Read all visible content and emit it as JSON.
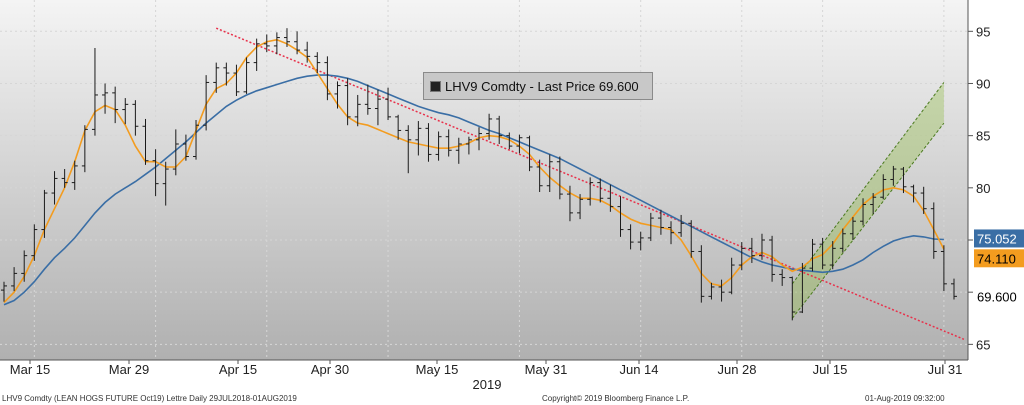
{
  "chart_data": {
    "type": "candlestick",
    "legend_text": "LHV9 Comdty - Last Price 69.600",
    "year_label": "2019",
    "x_tick_labels": [
      "Mar 15",
      "Mar 29",
      "Apr 15",
      "Apr 30",
      "May 15",
      "May 31",
      "Jun 14",
      "Jun 28",
      "Jul 15",
      "Jul 31"
    ],
    "y_ticks": [
      65,
      70,
      75,
      80,
      85,
      90,
      95
    ],
    "ylim": [
      63.5,
      98
    ],
    "last_price": 69.6,
    "last_price_label": "69.600",
    "ma_orange_label": "74.110",
    "ma_blue_label": "75.052",
    "colors": {
      "background_top": "#f4f4f4",
      "background_bottom": "#b0b0b0",
      "bars": "#1a1a1a",
      "ma_short": "#f39c1f",
      "ma_long": "#3a6ea5",
      "trendline": "#e8304a",
      "channel": "#8dbb3c",
      "last_price_tag": "#ffffff",
      "orange_tag": "#f39c1f",
      "blue_tag": "#3a6ea5"
    },
    "x_positions_days": [
      0,
      10,
      20,
      30,
      40,
      50,
      60,
      70,
      80,
      90
    ],
    "ohlc": [
      [
        70.2,
        71.0,
        69.1,
        70.6
      ],
      [
        70.6,
        72.4,
        70.1,
        71.8
      ],
      [
        71.8,
        74.0,
        71.0,
        73.5
      ],
      [
        73.5,
        76.5,
        73.0,
        76.0
      ],
      [
        76.0,
        79.8,
        75.2,
        79.5
      ],
      [
        79.5,
        81.6,
        78.4,
        80.9
      ],
      [
        80.9,
        81.8,
        80.0,
        80.5
      ],
      [
        80.5,
        82.6,
        79.8,
        82.1
      ],
      [
        82.1,
        86.0,
        81.5,
        85.6
      ],
      [
        85.6,
        93.4,
        85.0,
        88.9
      ],
      [
        88.9,
        90.0,
        87.1,
        89.1
      ],
      [
        89.1,
        89.7,
        86.2,
        87.5
      ],
      [
        87.5,
        88.6,
        86.1,
        88.0
      ],
      [
        88.0,
        88.4,
        85.0,
        85.9
      ],
      [
        85.9,
        86.6,
        82.2,
        82.6
      ],
      [
        82.6,
        83.7,
        79.2,
        80.4
      ],
      [
        80.4,
        82.5,
        78.3,
        81.8
      ],
      [
        81.8,
        85.6,
        81.2,
        84.2
      ],
      [
        84.2,
        85.1,
        82.6,
        83.0
      ],
      [
        83.0,
        86.5,
        82.7,
        86.0
      ],
      [
        86.0,
        90.8,
        85.5,
        90.1
      ],
      [
        90.1,
        92.0,
        89.1,
        91.5
      ],
      [
        91.5,
        92.0,
        89.8,
        91.0
      ],
      [
        91.0,
        91.8,
        88.8,
        89.2
      ],
      [
        89.2,
        92.5,
        89.0,
        92.0
      ],
      [
        92.0,
        94.3,
        91.2,
        93.8
      ],
      [
        93.8,
        94.7,
        93.0,
        93.6
      ],
      [
        93.6,
        94.9,
        92.8,
        94.4
      ],
      [
        94.4,
        95.3,
        93.5,
        94.0
      ],
      [
        94.0,
        95.0,
        92.8,
        93.2
      ],
      [
        93.2,
        94.0,
        92.0,
        92.6
      ],
      [
        92.6,
        93.0,
        91.0,
        92.0
      ],
      [
        92.0,
        92.6,
        88.4,
        89.0
      ],
      [
        89.0,
        90.2,
        87.6,
        89.8
      ],
      [
        89.8,
        90.5,
        86.0,
        86.8
      ],
      [
        86.8,
        88.9,
        85.9,
        88.0
      ],
      [
        88.0,
        89.9,
        87.0,
        87.6
      ],
      [
        87.6,
        89.4,
        86.0,
        88.5
      ],
      [
        88.5,
        89.6,
        86.5,
        86.8
      ],
      [
        86.8,
        87.0,
        84.6,
        85.5
      ],
      [
        85.5,
        86.0,
        81.4,
        84.6
      ],
      [
        84.6,
        86.4,
        83.1,
        85.7
      ],
      [
        85.7,
        86.2,
        82.5,
        83.2
      ],
      [
        83.2,
        85.4,
        82.6,
        84.9
      ],
      [
        84.9,
        85.6,
        83.0,
        83.6
      ],
      [
        83.6,
        84.8,
        82.3,
        84.2
      ],
      [
        84.2,
        84.9,
        83.2,
        84.6
      ],
      [
        84.6,
        85.8,
        83.6,
        85.2
      ],
      [
        85.2,
        87.1,
        84.6,
        86.6
      ],
      [
        86.6,
        86.9,
        84.2,
        85.0
      ],
      [
        85.0,
        85.3,
        83.7,
        84.0
      ],
      [
        84.0,
        85.1,
        83.3,
        84.8
      ],
      [
        84.8,
        85.0,
        81.6,
        82.0
      ],
      [
        82.0,
        82.7,
        79.6,
        80.2
      ],
      [
        80.2,
        83.2,
        79.6,
        82.5
      ],
      [
        82.5,
        83.0,
        78.9,
        79.4
      ],
      [
        79.4,
        80.2,
        76.8,
        77.6
      ],
      [
        77.6,
        79.4,
        77.0,
        78.9
      ],
      [
        78.9,
        81.0,
        78.3,
        80.5
      ],
      [
        80.5,
        80.9,
        78.6,
        79.0
      ],
      [
        79.0,
        80.3,
        77.7,
        78.2
      ],
      [
        78.2,
        79.2,
        75.3,
        76.0
      ],
      [
        76.0,
        76.5,
        74.1,
        74.8
      ],
      [
        74.8,
        75.8,
        74.0,
        75.2
      ],
      [
        75.2,
        77.6,
        74.9,
        77.1
      ],
      [
        77.1,
        77.9,
        75.5,
        76.2
      ],
      [
        76.2,
        76.8,
        74.6,
        75.7
      ],
      [
        75.7,
        77.4,
        75.3,
        76.6
      ],
      [
        76.6,
        76.9,
        73.3,
        73.9
      ],
      [
        73.9,
        74.5,
        69.0,
        69.6
      ],
      [
        69.6,
        70.9,
        69.3,
        70.5
      ],
      [
        70.5,
        71.2,
        69.1,
        70.0
      ],
      [
        70.0,
        73.3,
        69.8,
        72.6
      ],
      [
        72.6,
        74.8,
        72.1,
        74.2
      ],
      [
        74.2,
        75.2,
        72.8,
        73.5
      ],
      [
        73.5,
        75.6,
        73.1,
        75.0
      ],
      [
        75.0,
        75.4,
        71.0,
        71.7
      ],
      [
        71.7,
        72.2,
        70.6,
        71.4
      ],
      [
        71.4,
        71.5,
        67.3,
        68.1
      ],
      [
        68.1,
        72.8,
        68.0,
        72.3
      ],
      [
        72.3,
        75.1,
        72.0,
        74.6
      ],
      [
        74.6,
        75.2,
        72.2,
        72.6
      ],
      [
        72.6,
        74.9,
        72.2,
        74.2
      ],
      [
        74.2,
        76.1,
        73.8,
        75.6
      ],
      [
        75.6,
        77.2,
        75.0,
        76.8
      ],
      [
        76.8,
        79.0,
        76.4,
        78.4
      ],
      [
        78.4,
        79.5,
        77.5,
        79.1
      ],
      [
        79.1,
        81.3,
        78.9,
        80.8
      ],
      [
        80.8,
        82.1,
        80.2,
        81.8
      ],
      [
        81.8,
        82.0,
        79.5,
        80.1
      ],
      [
        80.1,
        80.3,
        78.6,
        79.5
      ],
      [
        79.5,
        80.1,
        77.5,
        78.0
      ],
      [
        78.0,
        78.6,
        73.2,
        73.9
      ],
      [
        73.9,
        74.5,
        70.1,
        70.8
      ],
      [
        70.8,
        71.3,
        69.3,
        69.6
      ]
    ],
    "ma_short_values": [
      69.0,
      70.0,
      71.5,
      73.5,
      76.0,
      78.0,
      80.0,
      82.5,
      85.5,
      87.3,
      87.9,
      87.5,
      86.0,
      84.0,
      82.5,
      82.5,
      82.0,
      82.0,
      83.0,
      85.5,
      88.0,
      89.5,
      90.0,
      91.0,
      92.5,
      93.5,
      94.0,
      94.2,
      93.8,
      93.2,
      92.5,
      91.0,
      89.5,
      88.0,
      86.8,
      86.2,
      86.0,
      85.6,
      85.2,
      84.8,
      84.4,
      84.2,
      84.0,
      83.8,
      83.8,
      84.0,
      84.3,
      84.8,
      85.0,
      84.9,
      84.6,
      84.0,
      83.2,
      82.0,
      81.0,
      80.2,
      79.5,
      79.0,
      79.0,
      78.8,
      78.3,
      77.6,
      77.0,
      76.6,
      76.4,
      76.2,
      76.0,
      75.0,
      73.5,
      71.8,
      70.8,
      70.6,
      71.4,
      72.6,
      73.4,
      73.8,
      73.4,
      72.6,
      72.0,
      72.4,
      73.2,
      73.6,
      74.6,
      76.0,
      77.2,
      78.4,
      79.2,
      79.8,
      80.0,
      79.8,
      79.2,
      77.8,
      76.0,
      74.11
    ],
    "ma_long_values": [
      68.8,
      69.2,
      70.0,
      71.0,
      72.2,
      73.3,
      74.2,
      75.2,
      76.4,
      77.6,
      78.6,
      79.4,
      80.0,
      80.6,
      81.3,
      82.0,
      82.8,
      83.6,
      84.4,
      85.3,
      86.2,
      87.0,
      87.8,
      88.4,
      88.9,
      89.3,
      89.6,
      89.9,
      90.2,
      90.5,
      90.7,
      90.8,
      90.8,
      90.7,
      90.5,
      90.2,
      89.8,
      89.4,
      89.0,
      88.6,
      88.2,
      87.8,
      87.5,
      87.2,
      87.0,
      86.7,
      86.3,
      85.9,
      85.5,
      85.2,
      84.8,
      84.4,
      84.0,
      83.6,
      83.2,
      82.8,
      82.3,
      81.8,
      81.3,
      80.8,
      80.3,
      79.8,
      79.3,
      78.8,
      78.3,
      77.8,
      77.3,
      76.8,
      76.3,
      75.8,
      75.3,
      74.8,
      74.3,
      73.8,
      73.3,
      72.9,
      72.6,
      72.4,
      72.2,
      72.1,
      72.0,
      71.9,
      72.0,
      72.2,
      72.6,
      73.1,
      73.8,
      74.4,
      74.9,
      75.2,
      75.4,
      75.3,
      75.1,
      75.05
    ],
    "trendline": {
      "start": [
        21,
        95.3
      ],
      "end": [
        93,
        65.2
      ]
    },
    "channel": {
      "lower": {
        "start": [
          78,
          67.5
        ],
        "end": [
          93,
          86.2
        ]
      },
      "upper": {
        "start": [
          78,
          70.8
        ],
        "end": [
          93,
          90.1
        ]
      }
    },
    "axis_tick_days": [
      3,
      15,
      26,
      38,
      51,
      63,
      73,
      81,
      93
    ]
  },
  "footer": {
    "left": "LHV9 Comdty (LEAN HOGS FUTURE Oct19) Lettre Daily 29JUL2018-01AUG2019",
    "center": "Copyright© 2019 Bloomberg Finance L.P.",
    "right": "01-Aug-2019 09:32:00"
  }
}
